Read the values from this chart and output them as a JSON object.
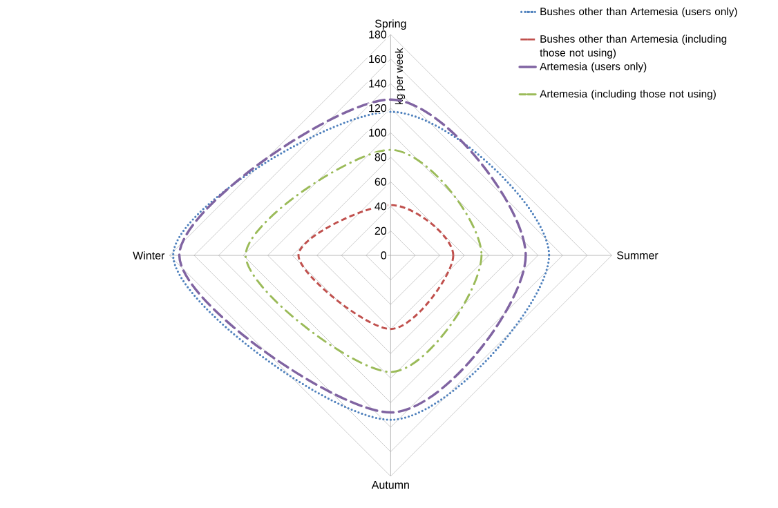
{
  "chart_data": {
    "type": "radar",
    "ylabel": "kg per week",
    "categories": [
      "Spring",
      "Summer",
      "Autumn",
      "Winter"
    ],
    "ylim": [
      0,
      180
    ],
    "yticks": [
      0,
      20,
      40,
      60,
      80,
      100,
      120,
      140,
      160,
      180
    ],
    "grid": true,
    "legend": "top right",
    "series": [
      {
        "name": "Bushes other than Artemesia (users only)",
        "color": "#4f81bd",
        "line_style": "dotted",
        "values": [
          117,
          129,
          134,
          177
        ]
      },
      {
        "name": "Bushes other than Artemesia (including those not using)",
        "color": "#c0504d",
        "line_style": "dashed",
        "values": [
          41,
          51,
          60,
          75
        ]
      },
      {
        "name": "Artemesia (users only)",
        "color": "#8064a2",
        "line_style": "long dashed",
        "values": [
          127,
          110,
          128,
          172
        ]
      },
      {
        "name": "Artemesia (including those not using)",
        "color": "#9bbb59",
        "line_style": "dash dot",
        "values": [
          86,
          74,
          95,
          118
        ]
      }
    ]
  }
}
